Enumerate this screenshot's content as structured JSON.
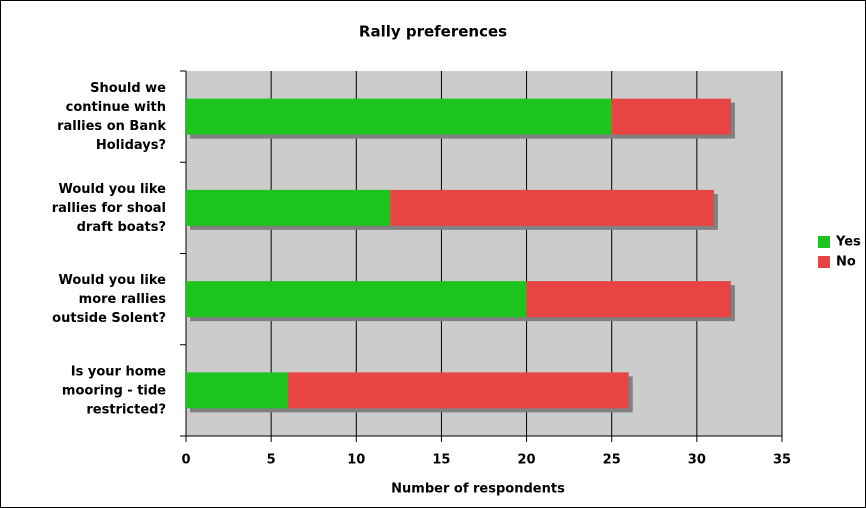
{
  "chart_data": {
    "type": "bar",
    "orientation": "horizontal",
    "stacked": true,
    "title": "Rally preferences",
    "categories": [
      "Should we continue with rallies on Bank Holidays?",
      "Would you like rallies for shoal draft boats?",
      "Would you like more rallies outside Solent?",
      "Is your home mooring - tide restricted?"
    ],
    "series": [
      {
        "name": "Yes",
        "color": "#1ec41e",
        "values": [
          25,
          12,
          20,
          6
        ]
      },
      {
        "name": "No",
        "color": "#e84444",
        "values": [
          7,
          19,
          12,
          20
        ]
      }
    ],
    "xlabel": "Number of respondents",
    "xlim": [
      0,
      35
    ],
    "xticks": [
      0,
      5,
      10,
      15,
      20,
      25,
      30,
      35
    ],
    "grid": true,
    "legend": "right"
  }
}
